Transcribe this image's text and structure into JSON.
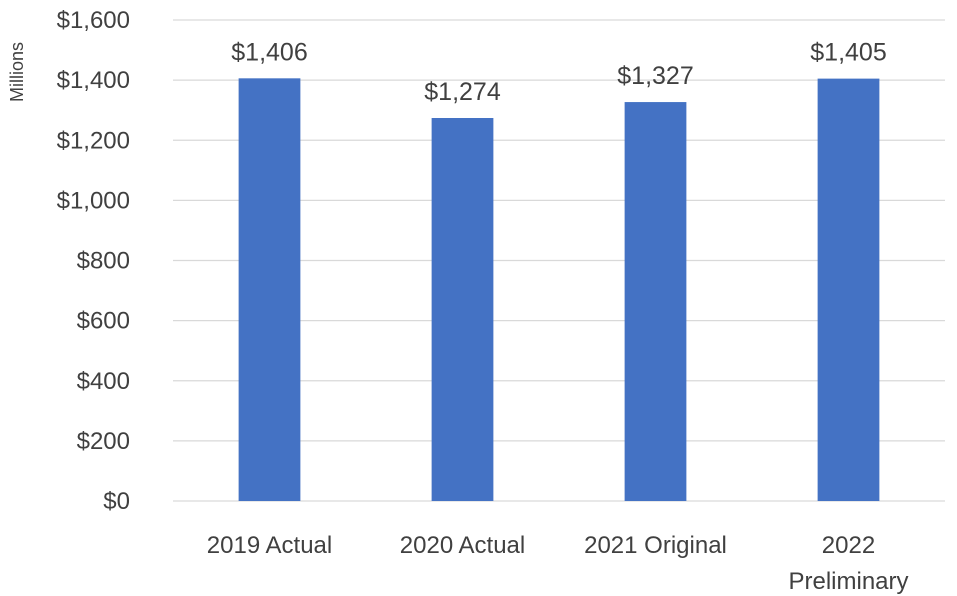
{
  "chart_data": {
    "type": "bar",
    "title": "",
    "xlabel": "",
    "ylabel": "Millions",
    "categories": [
      [
        "2019 Actual"
      ],
      [
        "2020 Actual"
      ],
      [
        "2021 Original"
      ],
      [
        "2022",
        "Preliminary"
      ]
    ],
    "values": [
      1406,
      1274,
      1327,
      1405
    ],
    "data_labels": [
      "$1,406",
      "$1,274",
      "$1,327",
      "$1,405"
    ],
    "ylim": [
      0,
      1600
    ],
    "yticks": [
      0,
      200,
      400,
      600,
      800,
      1000,
      1200,
      1400,
      1600
    ],
    "ytick_labels": [
      "$0",
      "$200",
      "$400",
      "$600",
      "$800",
      "$1,000",
      "$1,200",
      "$1,400",
      "$1,600"
    ],
    "grid": true,
    "legend": "none",
    "bar_color": "#4472c4"
  }
}
